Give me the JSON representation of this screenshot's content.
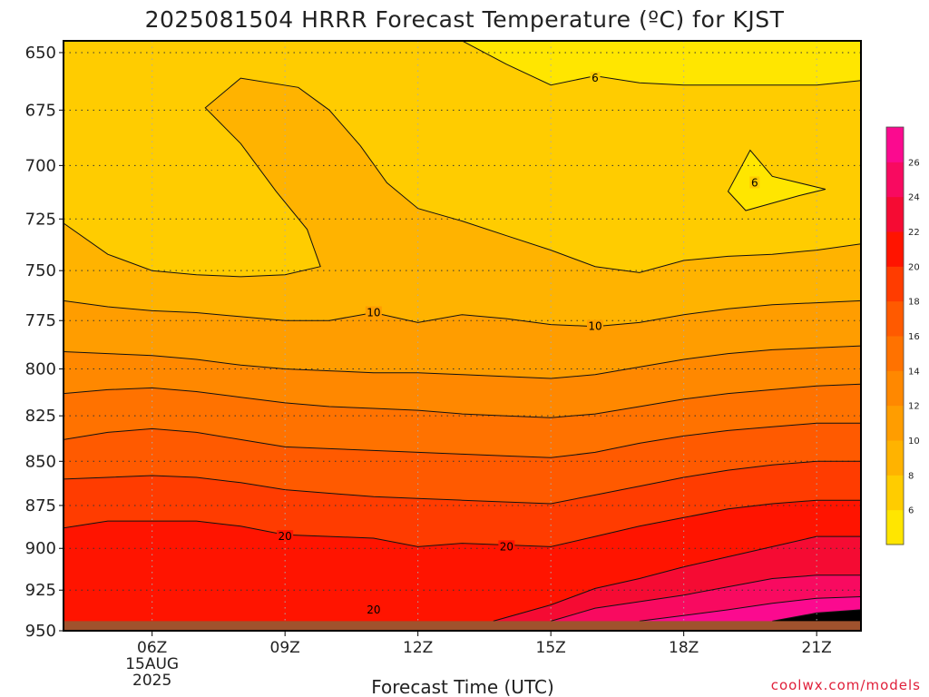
{
  "chart_data": {
    "type": "contour",
    "title": "2025081504 HRRR Forecast Temperature (ºC) for KJST",
    "xlabel": "Forecast Time (UTC)",
    "ylabel": "",
    "credit": "coolwx.com/models",
    "y_axis": {
      "scale": "log-pressure",
      "inverted": true,
      "range": [
        950,
        645
      ],
      "ticks": [
        "650",
        "675",
        "700",
        "725",
        "750",
        "775",
        "800",
        "825",
        "850",
        "875",
        "900",
        "925",
        "950"
      ]
    },
    "x_axis": {
      "range_hours_utc": [
        4,
        22
      ],
      "ticks": [
        {
          "hour": 6,
          "label": "06Z",
          "date_line1": "15AUG",
          "date_line2": "2025"
        },
        {
          "hour": 9,
          "label": "09Z"
        },
        {
          "hour": 12,
          "label": "12Z"
        },
        {
          "hour": 15,
          "label": "15Z"
        },
        {
          "hour": 18,
          "label": "18Z"
        },
        {
          "hour": 21,
          "label": "21Z"
        }
      ]
    },
    "grid": true,
    "surface_pressure_hpa": 944,
    "colorbar": {
      "placement": "right",
      "levels": [
        4,
        6,
        8,
        10,
        12,
        14,
        16,
        18,
        20,
        22,
        24,
        26,
        28
      ],
      "tick_labels": [
        "6",
        "8",
        "10",
        "12",
        "14",
        "16",
        "18",
        "20",
        "22",
        "24",
        "26"
      ],
      "colors": [
        "#ffe600",
        "#ffcc00",
        "#ffb300",
        "#ff9d00",
        "#ff8800",
        "#ff7200",
        "#ff5a00",
        "#ff3c00",
        "#ff1400",
        "#f50b33",
        "#f80a60",
        "#fb0a8f"
      ]
    },
    "contour_labels": [
      {
        "value": "6",
        "hour": 16.0,
        "p": 661
      },
      {
        "value": "6",
        "hour": 19.6,
        "p": 708
      },
      {
        "value": "10",
        "hour": 11.0,
        "p": 771
      },
      {
        "value": "10",
        "hour": 16.0,
        "p": 778
      },
      {
        "value": "20",
        "hour": 9.0,
        "p": 893
      },
      {
        "value": "20",
        "hour": 14.0,
        "p": 899
      },
      {
        "value": "20",
        "hour": 11.0,
        "p": 937
      }
    ],
    "isotherms": [
      {
        "value": 28,
        "points": [
          [
            20.0,
            944
          ],
          [
            21.0,
            939
          ],
          [
            22,
            937
          ]
        ]
      },
      {
        "value": 26,
        "points": [
          [
            17.0,
            944
          ],
          [
            19.0,
            937
          ],
          [
            20.0,
            933
          ],
          [
            21.0,
            930
          ],
          [
            22,
            929
          ]
        ]
      },
      {
        "value": 24,
        "points": [
          [
            15.0,
            944
          ],
          [
            16.0,
            936
          ],
          [
            18.0,
            928
          ],
          [
            19.0,
            923
          ],
          [
            20.0,
            918
          ],
          [
            21.0,
            916
          ],
          [
            22,
            916
          ]
        ]
      },
      {
        "value": 22,
        "points": [
          [
            13.7,
            944
          ],
          [
            15.0,
            934
          ],
          [
            16.0,
            924
          ],
          [
            17.0,
            918
          ],
          [
            18.0,
            911
          ],
          [
            19.0,
            905
          ],
          [
            20.0,
            899
          ],
          [
            21.0,
            893
          ],
          [
            22,
            893
          ]
        ]
      },
      {
        "value": 20,
        "points": [
          [
            4,
            888
          ],
          [
            5.0,
            884
          ],
          [
            6.0,
            884
          ],
          [
            7.0,
            884
          ],
          [
            8.0,
            887
          ],
          [
            9.0,
            892
          ],
          [
            10.0,
            893
          ],
          [
            11.0,
            894
          ],
          [
            12.0,
            899
          ],
          [
            13.0,
            897
          ],
          [
            14.0,
            898
          ],
          [
            15.0,
            899
          ],
          [
            16.0,
            893
          ],
          [
            17.0,
            887
          ],
          [
            18.0,
            882
          ],
          [
            19.0,
            877
          ],
          [
            20.0,
            874
          ],
          [
            21.0,
            872
          ],
          [
            22,
            872
          ]
        ]
      },
      {
        "value": 18,
        "points": [
          [
            4,
            860
          ],
          [
            5.0,
            859
          ],
          [
            6.0,
            858
          ],
          [
            7.0,
            859
          ],
          [
            8.0,
            862
          ],
          [
            9.0,
            866
          ],
          [
            10.0,
            868
          ],
          [
            11.0,
            870
          ],
          [
            12.0,
            871
          ],
          [
            13.0,
            872
          ],
          [
            14.0,
            873
          ],
          [
            15.0,
            874
          ],
          [
            16.0,
            869
          ],
          [
            17.0,
            864
          ],
          [
            18.0,
            859
          ],
          [
            19.0,
            855
          ],
          [
            20.0,
            852
          ],
          [
            21.0,
            850
          ],
          [
            22,
            850
          ]
        ]
      },
      {
        "value": 16,
        "points": [
          [
            4,
            838
          ],
          [
            5.0,
            834
          ],
          [
            6.0,
            832
          ],
          [
            7.0,
            834
          ],
          [
            8.0,
            838
          ],
          [
            9.0,
            842
          ],
          [
            10.0,
            843
          ],
          [
            11.0,
            844
          ],
          [
            12.0,
            845
          ],
          [
            13.0,
            846
          ],
          [
            14.0,
            847
          ],
          [
            15.0,
            848
          ],
          [
            16.0,
            845
          ],
          [
            17.0,
            840
          ],
          [
            18.0,
            836
          ],
          [
            19.0,
            833
          ],
          [
            20.0,
            831
          ],
          [
            21.0,
            829
          ],
          [
            22,
            829
          ]
        ]
      },
      {
        "value": 14,
        "points": [
          [
            4,
            813
          ],
          [
            5.0,
            811
          ],
          [
            6.0,
            810
          ],
          [
            7.0,
            812
          ],
          [
            8.0,
            815
          ],
          [
            9.0,
            818
          ],
          [
            10.0,
            820
          ],
          [
            11.0,
            821
          ],
          [
            12.0,
            822
          ],
          [
            13.0,
            824
          ],
          [
            14.0,
            825
          ],
          [
            15.0,
            826
          ],
          [
            16.0,
            824
          ],
          [
            17.0,
            820
          ],
          [
            18.0,
            816
          ],
          [
            19.0,
            813
          ],
          [
            20.0,
            811
          ],
          [
            21.0,
            809
          ],
          [
            22,
            808
          ]
        ]
      },
      {
        "value": 12,
        "points": [
          [
            4,
            791
          ],
          [
            5.0,
            792
          ],
          [
            6.0,
            793
          ],
          [
            7.0,
            795
          ],
          [
            8.0,
            798
          ],
          [
            9.0,
            800
          ],
          [
            10.0,
            801
          ],
          [
            11.0,
            802
          ],
          [
            12.0,
            802
          ],
          [
            13.0,
            803
          ],
          [
            14.0,
            804
          ],
          [
            15.0,
            805
          ],
          [
            16.0,
            803
          ],
          [
            17.0,
            799
          ],
          [
            18.0,
            795
          ],
          [
            19.0,
            792
          ],
          [
            20.0,
            790
          ],
          [
            21.0,
            789
          ],
          [
            22,
            788
          ]
        ]
      },
      {
        "value": 10,
        "points": [
          [
            4,
            765
          ],
          [
            5.0,
            768
          ],
          [
            6.0,
            770
          ],
          [
            7.0,
            771
          ],
          [
            8.0,
            773
          ],
          [
            9.0,
            775
          ],
          [
            10.0,
            775
          ],
          [
            11.0,
            771
          ],
          [
            12.0,
            776
          ],
          [
            13.0,
            772
          ],
          [
            14.0,
            774
          ],
          [
            15.0,
            777
          ],
          [
            16.0,
            778
          ],
          [
            17.0,
            776
          ],
          [
            18.0,
            772
          ],
          [
            19.0,
            769
          ],
          [
            20.0,
            767
          ],
          [
            21.0,
            766
          ],
          [
            22,
            765
          ]
        ]
      },
      {
        "value": 8,
        "points": [
          [
            4,
            727
          ],
          [
            5.0,
            742
          ],
          [
            6.0,
            750
          ],
          [
            7.0,
            752
          ],
          [
            8.0,
            753
          ],
          [
            9.0,
            752
          ],
          [
            9.8,
            748
          ],
          [
            9.5,
            730
          ],
          [
            8.8,
            712
          ],
          [
            8.0,
            690
          ],
          [
            7.2,
            674
          ],
          [
            8.0,
            661
          ],
          [
            9.3,
            665
          ],
          [
            10.0,
            675
          ],
          [
            10.7,
            691
          ],
          [
            11.3,
            708
          ],
          [
            12.0,
            720
          ],
          [
            13.0,
            726
          ],
          [
            14.0,
            733
          ],
          [
            15.0,
            740
          ],
          [
            16.0,
            748
          ],
          [
            17.0,
            751
          ],
          [
            18.0,
            745
          ],
          [
            19.0,
            743
          ],
          [
            20.0,
            742
          ],
          [
            21.0,
            740
          ],
          [
            22,
            737
          ]
        ]
      },
      {
        "value": 6,
        "points": [
          [
            13.0,
            645
          ],
          [
            14.0,
            655
          ],
          [
            15.0,
            664
          ],
          [
            16.0,
            660
          ],
          [
            17.0,
            663
          ],
          [
            18.0,
            664
          ],
          [
            19.0,
            664
          ],
          [
            20.0,
            664
          ],
          [
            21.0,
            664
          ],
          [
            22,
            662
          ]
        ]
      },
      {
        "value": 6,
        "closed": true,
        "points": [
          [
            19.5,
            693
          ],
          [
            19.0,
            712
          ],
          [
            19.4,
            721
          ],
          [
            20.6,
            714
          ],
          [
            21.2,
            711
          ],
          [
            20.0,
            705
          ]
        ]
      }
    ]
  }
}
